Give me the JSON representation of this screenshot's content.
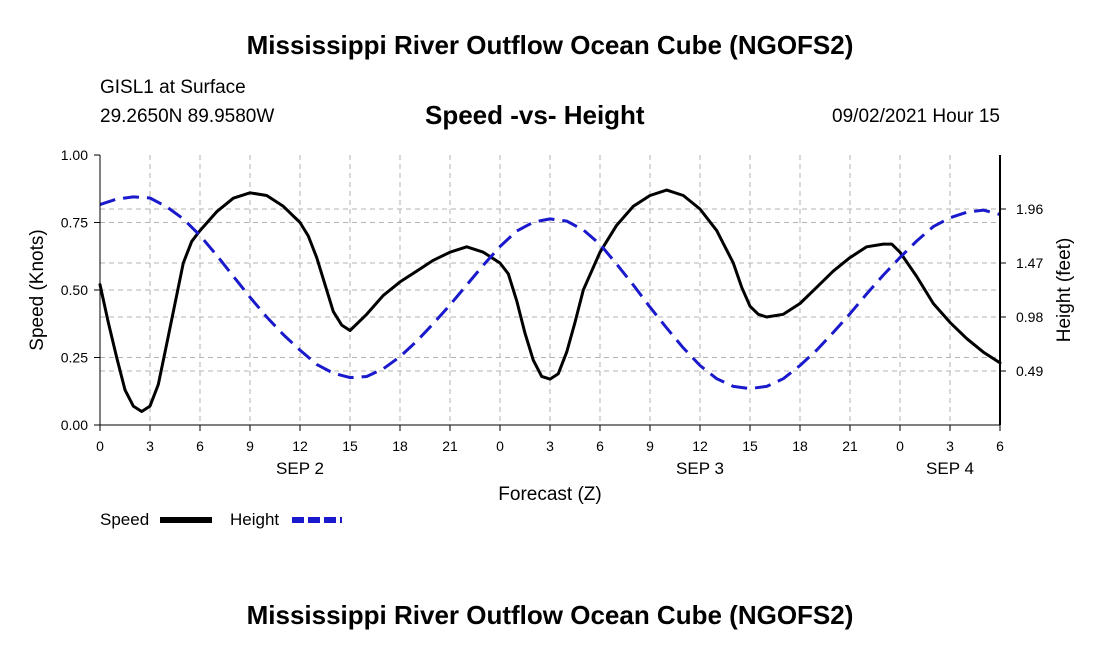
{
  "page": {
    "title": "Mississippi River Outflow Ocean Cube (NGOFS2)",
    "footer_title": "Mississippi River Outflow Ocean Cube (NGOFS2)",
    "station": "GISL1 at Surface",
    "coords": "29.2650N  89.9580W",
    "subtitle": "Speed -vs- Height",
    "datetime": "09/02/2021 Hour 15"
  },
  "legend": {
    "speed_label": "Speed",
    "height_label": "Height"
  },
  "chart_data": {
    "type": "line",
    "title": "Speed -vs- Height",
    "xlabel": "Forecast (Z)",
    "ylabel": "Speed (Knots)",
    "y2label": "Height (feet)",
    "xlim": [
      0,
      54
    ],
    "ylim": [
      0,
      1
    ],
    "y2lim": [
      0,
      2.45
    ],
    "x_ticks": [
      0,
      3,
      6,
      9,
      12,
      15,
      18,
      21,
      24,
      27,
      30,
      33,
      36,
      39,
      42,
      45,
      48,
      51,
      54
    ],
    "x_tick_labels": [
      "0",
      "3",
      "6",
      "9",
      "12",
      "15",
      "18",
      "21",
      "0",
      "3",
      "6",
      "9",
      "12",
      "15",
      "18",
      "21",
      "0",
      "3",
      "6"
    ],
    "y_ticks": [
      0,
      0.25,
      0.5,
      0.75,
      1.0
    ],
    "y_tick_labels": [
      "0.00",
      "0.25",
      "0.50",
      "0.75",
      "1.00"
    ],
    "y2_ticks": [
      0.49,
      0.98,
      1.47,
      1.96
    ],
    "y2_tick_labels": [
      "0.49",
      "0.98",
      "1.47",
      "1.96"
    ],
    "date_labels": [
      {
        "x": 12,
        "text": "SEP 2"
      },
      {
        "x": 36,
        "text": "SEP 3"
      },
      {
        "x": 51,
        "text": "SEP 4"
      }
    ],
    "grid": true,
    "colors": {
      "speed": "#000000",
      "height": "#1a1acc",
      "grid": "#b3b3b3"
    },
    "series": [
      {
        "name": "Speed",
        "axis": "left",
        "style": "solid",
        "x": [
          0,
          0.5,
          1,
          1.5,
          2,
          2.5,
          3,
          3.5,
          4,
          4.5,
          5,
          5.5,
          6,
          7,
          8,
          9,
          10,
          11,
          12,
          12.5,
          13,
          13.5,
          14,
          14.5,
          15,
          16,
          17,
          18,
          19,
          20,
          21,
          22,
          23,
          24,
          24.5,
          25,
          25.5,
          26,
          26.5,
          27,
          27.5,
          28,
          28.5,
          29,
          30,
          31,
          32,
          33,
          34,
          35,
          36,
          37,
          38,
          38.5,
          39,
          39.5,
          40,
          41,
          42,
          43,
          44,
          45,
          46,
          47,
          47.5,
          48,
          49,
          50,
          51,
          52,
          53,
          54
        ],
        "values": [
          0.52,
          0.38,
          0.25,
          0.13,
          0.07,
          0.05,
          0.07,
          0.15,
          0.3,
          0.45,
          0.6,
          0.68,
          0.72,
          0.79,
          0.84,
          0.86,
          0.85,
          0.81,
          0.75,
          0.7,
          0.62,
          0.52,
          0.42,
          0.37,
          0.35,
          0.41,
          0.48,
          0.53,
          0.57,
          0.61,
          0.64,
          0.66,
          0.64,
          0.6,
          0.56,
          0.46,
          0.34,
          0.24,
          0.18,
          0.17,
          0.19,
          0.27,
          0.38,
          0.5,
          0.64,
          0.74,
          0.81,
          0.85,
          0.87,
          0.85,
          0.8,
          0.72,
          0.6,
          0.51,
          0.44,
          0.41,
          0.4,
          0.41,
          0.45,
          0.51,
          0.57,
          0.62,
          0.66,
          0.67,
          0.67,
          0.64,
          0.55,
          0.45,
          0.38,
          0.32,
          0.27,
          0.23
        ]
      },
      {
        "name": "Height",
        "axis": "right",
        "style": "dashed",
        "x": [
          0,
          1,
          2,
          3,
          4,
          5,
          6,
          7,
          8,
          9,
          10,
          11,
          12,
          13,
          14,
          15,
          16,
          17,
          18,
          19,
          20,
          21,
          22,
          23,
          24,
          25,
          26,
          27,
          28,
          29,
          30,
          31,
          32,
          33,
          34,
          35,
          36,
          37,
          38,
          39,
          40,
          41,
          42,
          43,
          44,
          45,
          46,
          47,
          48,
          49,
          50,
          51,
          52,
          53,
          54
        ],
        "values": [
          2.0,
          2.05,
          2.07,
          2.06,
          1.98,
          1.87,
          1.72,
          1.54,
          1.35,
          1.16,
          0.98,
          0.82,
          0.68,
          0.55,
          0.47,
          0.43,
          0.44,
          0.51,
          0.62,
          0.76,
          0.92,
          1.09,
          1.27,
          1.45,
          1.62,
          1.76,
          1.84,
          1.87,
          1.85,
          1.77,
          1.64,
          1.46,
          1.27,
          1.07,
          0.88,
          0.7,
          0.54,
          0.42,
          0.35,
          0.33,
          0.35,
          0.42,
          0.54,
          0.68,
          0.84,
          1.01,
          1.19,
          1.36,
          1.52,
          1.67,
          1.8,
          1.88,
          1.93,
          1.95,
          1.91
        ]
      }
    ]
  }
}
